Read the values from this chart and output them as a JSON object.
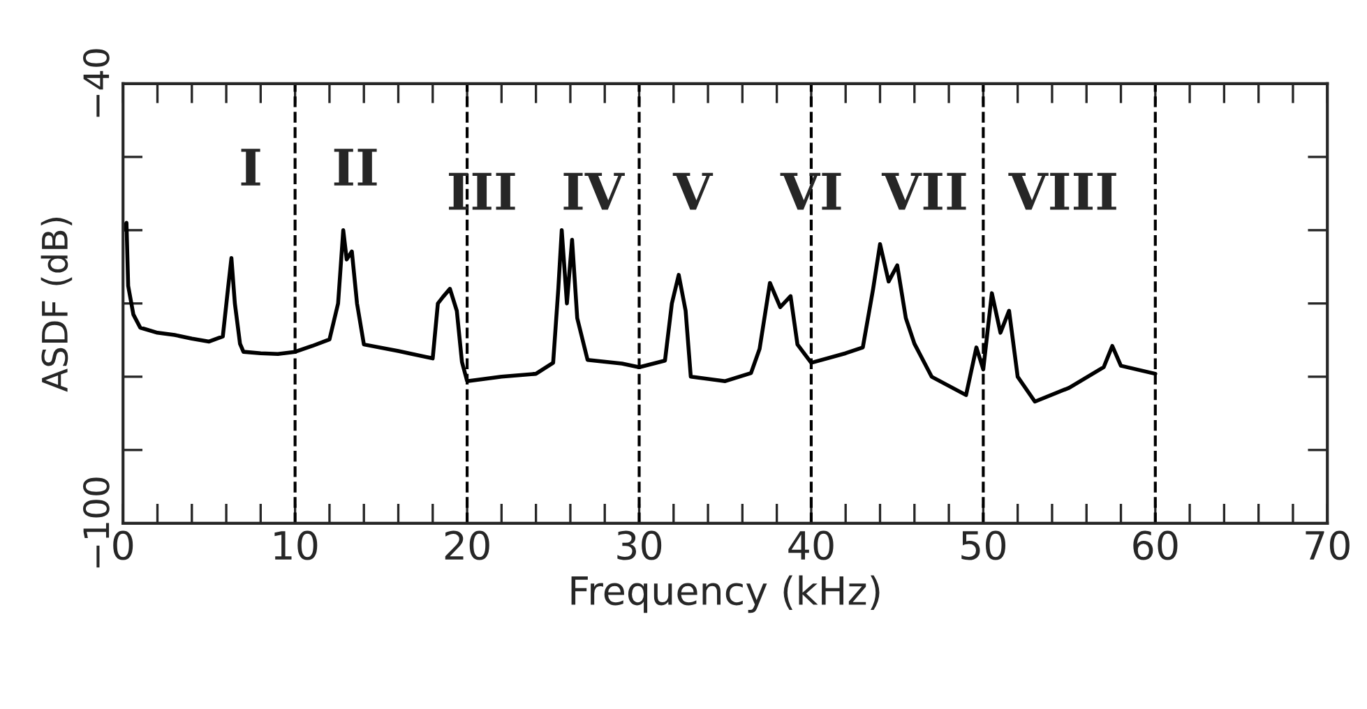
{
  "chart_data": {
    "type": "line",
    "xlabel": "Frequency (kHz)",
    "ylabel": "ASDF (dB)",
    "x": [
      0,
      0.2,
      0.3,
      0.6,
      1,
      2,
      3,
      4,
      5,
      5.8,
      6.1,
      6.3,
      6.5,
      6.8,
      7,
      8,
      9,
      10,
      11,
      12,
      12.5,
      12.8,
      13,
      13.3,
      13.6,
      14,
      16,
      18,
      18.3,
      18.6,
      19,
      19.4,
      19.7,
      20,
      22,
      24,
      25,
      25.3,
      25.5,
      25.8,
      26.1,
      26.4,
      27,
      29,
      30,
      31.5,
      31.9,
      32.3,
      32.7,
      33,
      35,
      36.5,
      37,
      37.6,
      38.2,
      38.8,
      39.2,
      40,
      42,
      43,
      43.6,
      44,
      44.5,
      45,
      45.5,
      46,
      47,
      49,
      49.6,
      50,
      50.5,
      51,
      51.5,
      52,
      53,
      55,
      57,
      57.5,
      58,
      60
    ],
    "series": [
      {
        "color": "#000000",
        "values": [
          -60,
          -59,
          -67.6,
          -71.5,
          -73.3,
          -74,
          -74.3,
          -74.8,
          -75.2,
          -74.5,
          -68,
          -63.8,
          -70,
          -75.5,
          -76.6,
          -76.8,
          -76.9,
          -76.6,
          -75.8,
          -74.9,
          -70,
          -60,
          -64,
          -62.9,
          -70,
          -75.6,
          -76.5,
          -77.5,
          -70,
          -69.1,
          -68,
          -71,
          -78,
          -80.6,
          -80,
          -79.6,
          -78.1,
          -68,
          -60,
          -70,
          -61.3,
          -72,
          -77.7,
          -78.2,
          -78.7,
          -77.8,
          -70,
          -66.1,
          -71,
          -80,
          -80.6,
          -79.5,
          -76.2,
          -67.2,
          -70.5,
          -69,
          -75.6,
          -78.1,
          -76.8,
          -76,
          -68,
          -61.9,
          -67,
          -64.8,
          -72,
          -75.5,
          -80,
          -82.5,
          -76,
          -79,
          -68.6,
          -74,
          -71,
          -80,
          -83.4,
          -81.5,
          -78.7,
          -75.8,
          -78.5,
          -79.6
        ]
      }
    ],
    "xlim": [
      0,
      70
    ],
    "ylim": [
      -100,
      -40
    ],
    "xticks": [
      0,
      {
        "value": 2,
        "label": null
      },
      {
        "value": 4,
        "label": null
      },
      {
        "value": 6,
        "label": null
      },
      {
        "value": 8,
        "label": null
      },
      10,
      {
        "value": 12,
        "label": null
      },
      {
        "value": 14,
        "label": null
      },
      {
        "value": 16,
        "label": null
      },
      {
        "value": 18,
        "label": null
      },
      20,
      {
        "value": 22,
        "label": null
      },
      {
        "value": 24,
        "label": null
      },
      {
        "value": 26,
        "label": null
      },
      {
        "value": 28,
        "label": null
      },
      30,
      {
        "value": 32,
        "label": null
      },
      {
        "value": 34,
        "label": null
      },
      {
        "value": 36,
        "label": null
      },
      {
        "value": 38,
        "label": null
      },
      40,
      {
        "value": 42,
        "label": null
      },
      {
        "value": 44,
        "label": null
      },
      {
        "value": 46,
        "label": null
      },
      {
        "value": 48,
        "label": null
      },
      50,
      {
        "value": 52,
        "label": null
      },
      {
        "value": 54,
        "label": null
      },
      {
        "value": 56,
        "label": null
      },
      {
        "value": 58,
        "label": null
      },
      60,
      {
        "value": 62,
        "label": null
      },
      {
        "value": 64,
        "label": null
      },
      {
        "value": 66,
        "label": null
      },
      {
        "value": 68,
        "label": null
      },
      70
    ],
    "yticks": [
      {
        "value": -100,
        "label": "−100"
      },
      {
        "value": -90,
        "label": null
      },
      {
        "value": -80,
        "label": null
      },
      {
        "value": -70,
        "label": null
      },
      {
        "value": -60,
        "label": null
      },
      {
        "value": -50,
        "label": null
      },
      {
        "value": -40,
        "label": "−40"
      }
    ],
    "ref_lines": [
      {
        "axis": "x",
        "value": 10,
        "line_style": "dashed"
      },
      {
        "axis": "x",
        "value": 20,
        "line_style": "dashed"
      },
      {
        "axis": "x",
        "value": 30,
        "line_style": "dashed"
      },
      {
        "axis": "x",
        "value": 40,
        "line_style": "dashed"
      },
      {
        "axis": "x",
        "value": 50,
        "line_style": "dashed"
      },
      {
        "axis": "x",
        "value": 60,
        "line_style": "dashed"
      }
    ],
    "annotations": [
      "I",
      "II",
      "III",
      "IV",
      "V",
      "VI",
      "VII",
      "VIII"
    ],
    "grid": false,
    "line_style": "solid"
  }
}
